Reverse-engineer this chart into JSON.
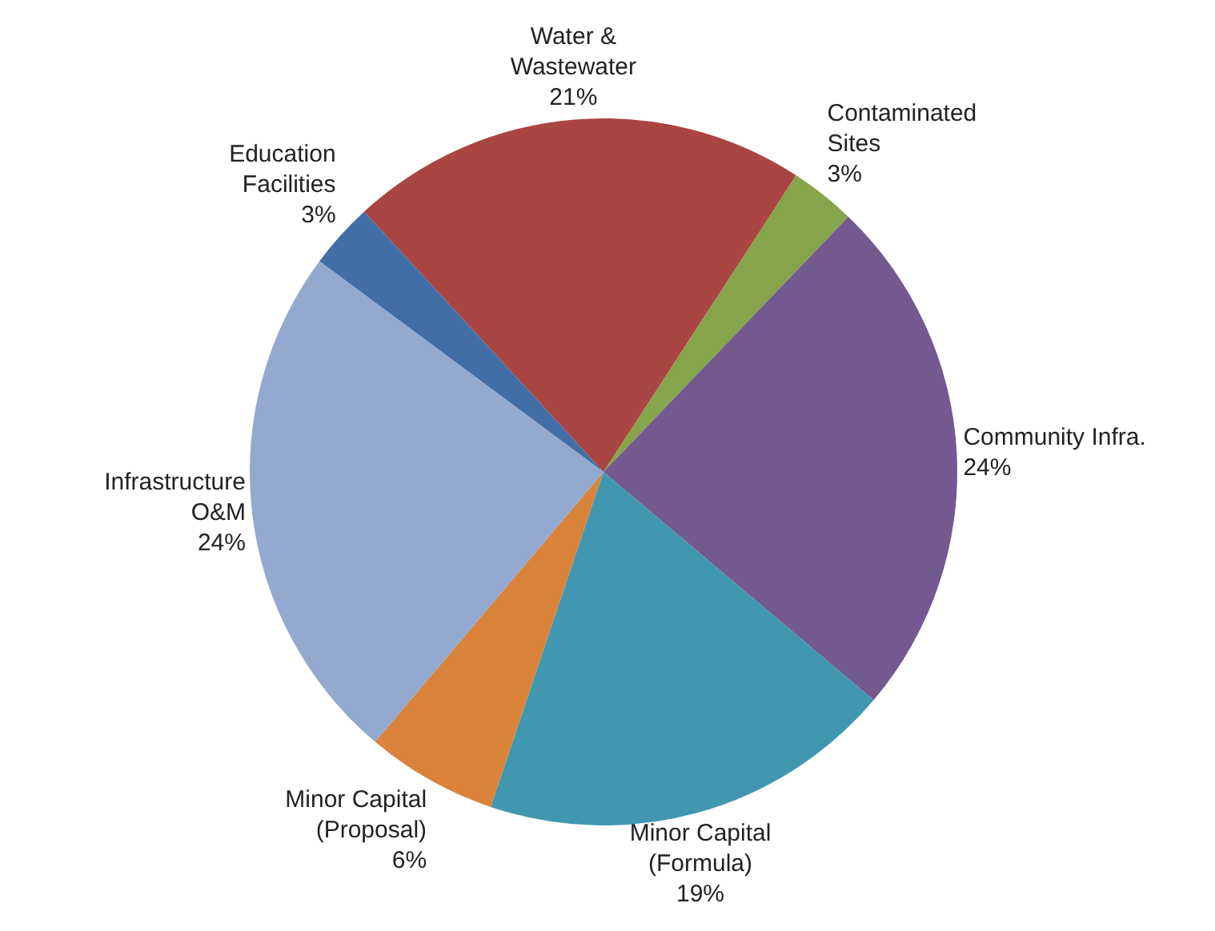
{
  "chart_data": {
    "type": "pie",
    "categories": [
      "Water &\nWastewater",
      "Contaminated\nSites",
      "Community Infra.",
      "Minor Capital\n(Formula)",
      "Minor Capital\n(Proposal)",
      "Infrastructure\nO&M",
      "Education\nFacilities"
    ],
    "values": [
      21,
      3,
      24,
      19,
      6,
      24,
      3
    ],
    "value_labels": [
      "21%",
      "3%",
      "24%",
      "19%",
      "6%",
      "24%",
      "3%"
    ],
    "colors": [
      "#a94543",
      "#86a44a",
      "#725990",
      "#4197b0",
      "#d9833b",
      "#93a9d0",
      "#426ea6"
    ],
    "legend": false
  }
}
